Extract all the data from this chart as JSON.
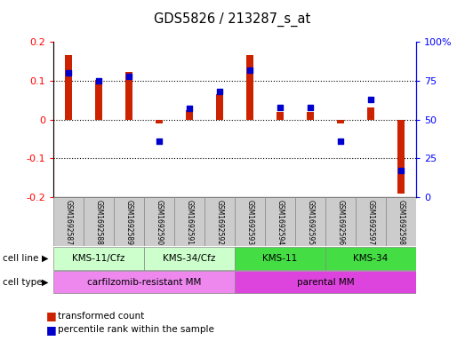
{
  "title": "GDS5826 / 213287_s_at",
  "samples": [
    "GSM1692587",
    "GSM1692588",
    "GSM1692589",
    "GSM1692590",
    "GSM1692591",
    "GSM1692592",
    "GSM1692593",
    "GSM1692594",
    "GSM1692595",
    "GSM1692596",
    "GSM1692597",
    "GSM1692598"
  ],
  "red_values": [
    0.165,
    0.102,
    0.122,
    -0.01,
    0.025,
    0.065,
    0.165,
    0.02,
    0.02,
    -0.01,
    0.03,
    -0.19
  ],
  "blue_values": [
    80,
    75,
    78,
    36,
    57,
    68,
    82,
    58,
    58,
    36,
    63,
    17
  ],
  "cell_line_groups": [
    {
      "label": "KMS-11/Cfz",
      "start": 0,
      "end": 2,
      "color": "#ccffcc"
    },
    {
      "label": "KMS-34/Cfz",
      "start": 3,
      "end": 5,
      "color": "#ccffcc"
    },
    {
      "label": "KMS-11",
      "start": 6,
      "end": 8,
      "color": "#44dd44"
    },
    {
      "label": "KMS-34",
      "start": 9,
      "end": 11,
      "color": "#44dd44"
    }
  ],
  "cell_type_groups": [
    {
      "label": "carfilzomib-resistant MM",
      "start": 0,
      "end": 5,
      "color": "#ee88ee"
    },
    {
      "label": "parental MM",
      "start": 6,
      "end": 11,
      "color": "#dd44dd"
    }
  ],
  "ylim_left": [
    -0.2,
    0.2
  ],
  "ylim_right": [
    0,
    100
  ],
  "yticks_left": [
    -0.2,
    -0.1,
    0.0,
    0.1,
    0.2
  ],
  "ytick_labels_left": [
    "-0.2",
    "-0.1",
    "0",
    "0.1",
    "0.2"
  ],
  "yticks_right": [
    0,
    25,
    50,
    75,
    100
  ],
  "ytick_labels_right": [
    "0",
    "25",
    "50",
    "75",
    "100%"
  ],
  "red_color": "#cc2200",
  "blue_color": "#0000cc",
  "sample_box_color": "#cccccc",
  "bg_color": "#ffffff",
  "legend_red": "transformed count",
  "legend_blue": "percentile rank within the sample"
}
